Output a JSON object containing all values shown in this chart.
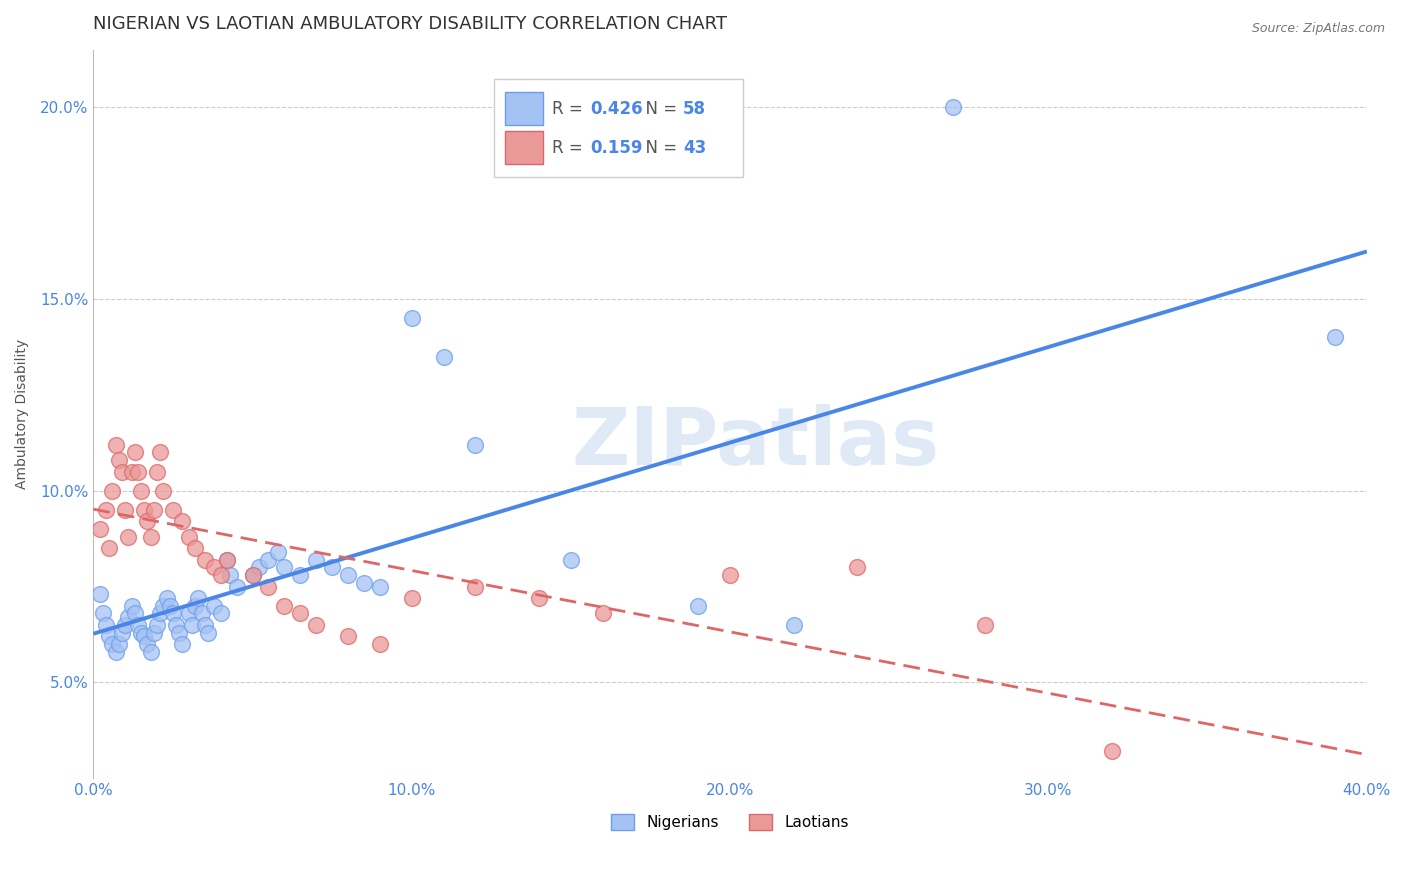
{
  "title": "NIGERIAN VS LAOTIAN AMBULATORY DISABILITY CORRELATION CHART",
  "source_text": "Source: ZipAtlas.com",
  "ylabel": "Ambulatory Disability",
  "watermark": "ZIPatlas",
  "legend_r_nigerian": "0.426",
  "legend_n_nigerian": "58",
  "legend_r_laotian": "0.159",
  "legend_n_laotian": "43",
  "nigerian_color": "#a4c2f4",
  "nigerian_edge_color": "#6d9eeb",
  "laotian_color": "#ea9999",
  "laotian_edge_color": "#e06666",
  "nigerian_line_color": "#4a86e8",
  "laotian_line_color": "#e06666",
  "xlim": [
    0.0,
    0.4
  ],
  "ylim": [
    0.025,
    0.215
  ],
  "xticks": [
    0.0,
    0.1,
    0.2,
    0.3,
    0.4
  ],
  "xtick_labels": [
    "0.0%",
    "10.0%",
    "20.0%",
    "30.0%",
    "40.0%"
  ],
  "yticks": [
    0.05,
    0.1,
    0.15,
    0.2
  ],
  "ytick_labels": [
    "5.0%",
    "10.0%",
    "15.0%",
    "20.0%"
  ],
  "background_color": "#ffffff",
  "grid_color": "#cccccc",
  "title_fontsize": 13,
  "axis_label_fontsize": 10,
  "tick_fontsize": 11,
  "legend_fontsize": 12,
  "nigerian_x": [
    0.002,
    0.003,
    0.004,
    0.005,
    0.006,
    0.007,
    0.008,
    0.009,
    0.01,
    0.011,
    0.012,
    0.013,
    0.014,
    0.015,
    0.016,
    0.017,
    0.018,
    0.019,
    0.02,
    0.021,
    0.022,
    0.023,
    0.024,
    0.025,
    0.026,
    0.027,
    0.028,
    0.03,
    0.031,
    0.032,
    0.033,
    0.034,
    0.035,
    0.036,
    0.038,
    0.04,
    0.042,
    0.043,
    0.045,
    0.05,
    0.052,
    0.055,
    0.058,
    0.06,
    0.065,
    0.07,
    0.075,
    0.08,
    0.085,
    0.09,
    0.1,
    0.11,
    0.12,
    0.15,
    0.19,
    0.22,
    0.27,
    0.39
  ],
  "nigerian_y": [
    0.073,
    0.068,
    0.065,
    0.062,
    0.06,
    0.058,
    0.06,
    0.063,
    0.065,
    0.067,
    0.07,
    0.068,
    0.065,
    0.063,
    0.062,
    0.06,
    0.058,
    0.063,
    0.065,
    0.068,
    0.07,
    0.072,
    0.07,
    0.068,
    0.065,
    0.063,
    0.06,
    0.068,
    0.065,
    0.07,
    0.072,
    0.068,
    0.065,
    0.063,
    0.07,
    0.068,
    0.082,
    0.078,
    0.075,
    0.078,
    0.08,
    0.082,
    0.084,
    0.08,
    0.078,
    0.082,
    0.08,
    0.078,
    0.076,
    0.075,
    0.145,
    0.135,
    0.112,
    0.082,
    0.07,
    0.065,
    0.2,
    0.14
  ],
  "laotian_x": [
    0.002,
    0.004,
    0.005,
    0.006,
    0.007,
    0.008,
    0.009,
    0.01,
    0.011,
    0.012,
    0.013,
    0.014,
    0.015,
    0.016,
    0.017,
    0.018,
    0.019,
    0.02,
    0.021,
    0.022,
    0.025,
    0.028,
    0.03,
    0.032,
    0.035,
    0.038,
    0.04,
    0.042,
    0.05,
    0.055,
    0.06,
    0.065,
    0.07,
    0.08,
    0.09,
    0.1,
    0.12,
    0.14,
    0.16,
    0.2,
    0.24,
    0.28,
    0.32
  ],
  "laotian_y": [
    0.09,
    0.095,
    0.085,
    0.1,
    0.112,
    0.108,
    0.105,
    0.095,
    0.088,
    0.105,
    0.11,
    0.105,
    0.1,
    0.095,
    0.092,
    0.088,
    0.095,
    0.105,
    0.11,
    0.1,
    0.095,
    0.092,
    0.088,
    0.085,
    0.082,
    0.08,
    0.078,
    0.082,
    0.078,
    0.075,
    0.07,
    0.068,
    0.065,
    0.062,
    0.06,
    0.072,
    0.075,
    0.072,
    0.068,
    0.078,
    0.08,
    0.065,
    0.032
  ]
}
